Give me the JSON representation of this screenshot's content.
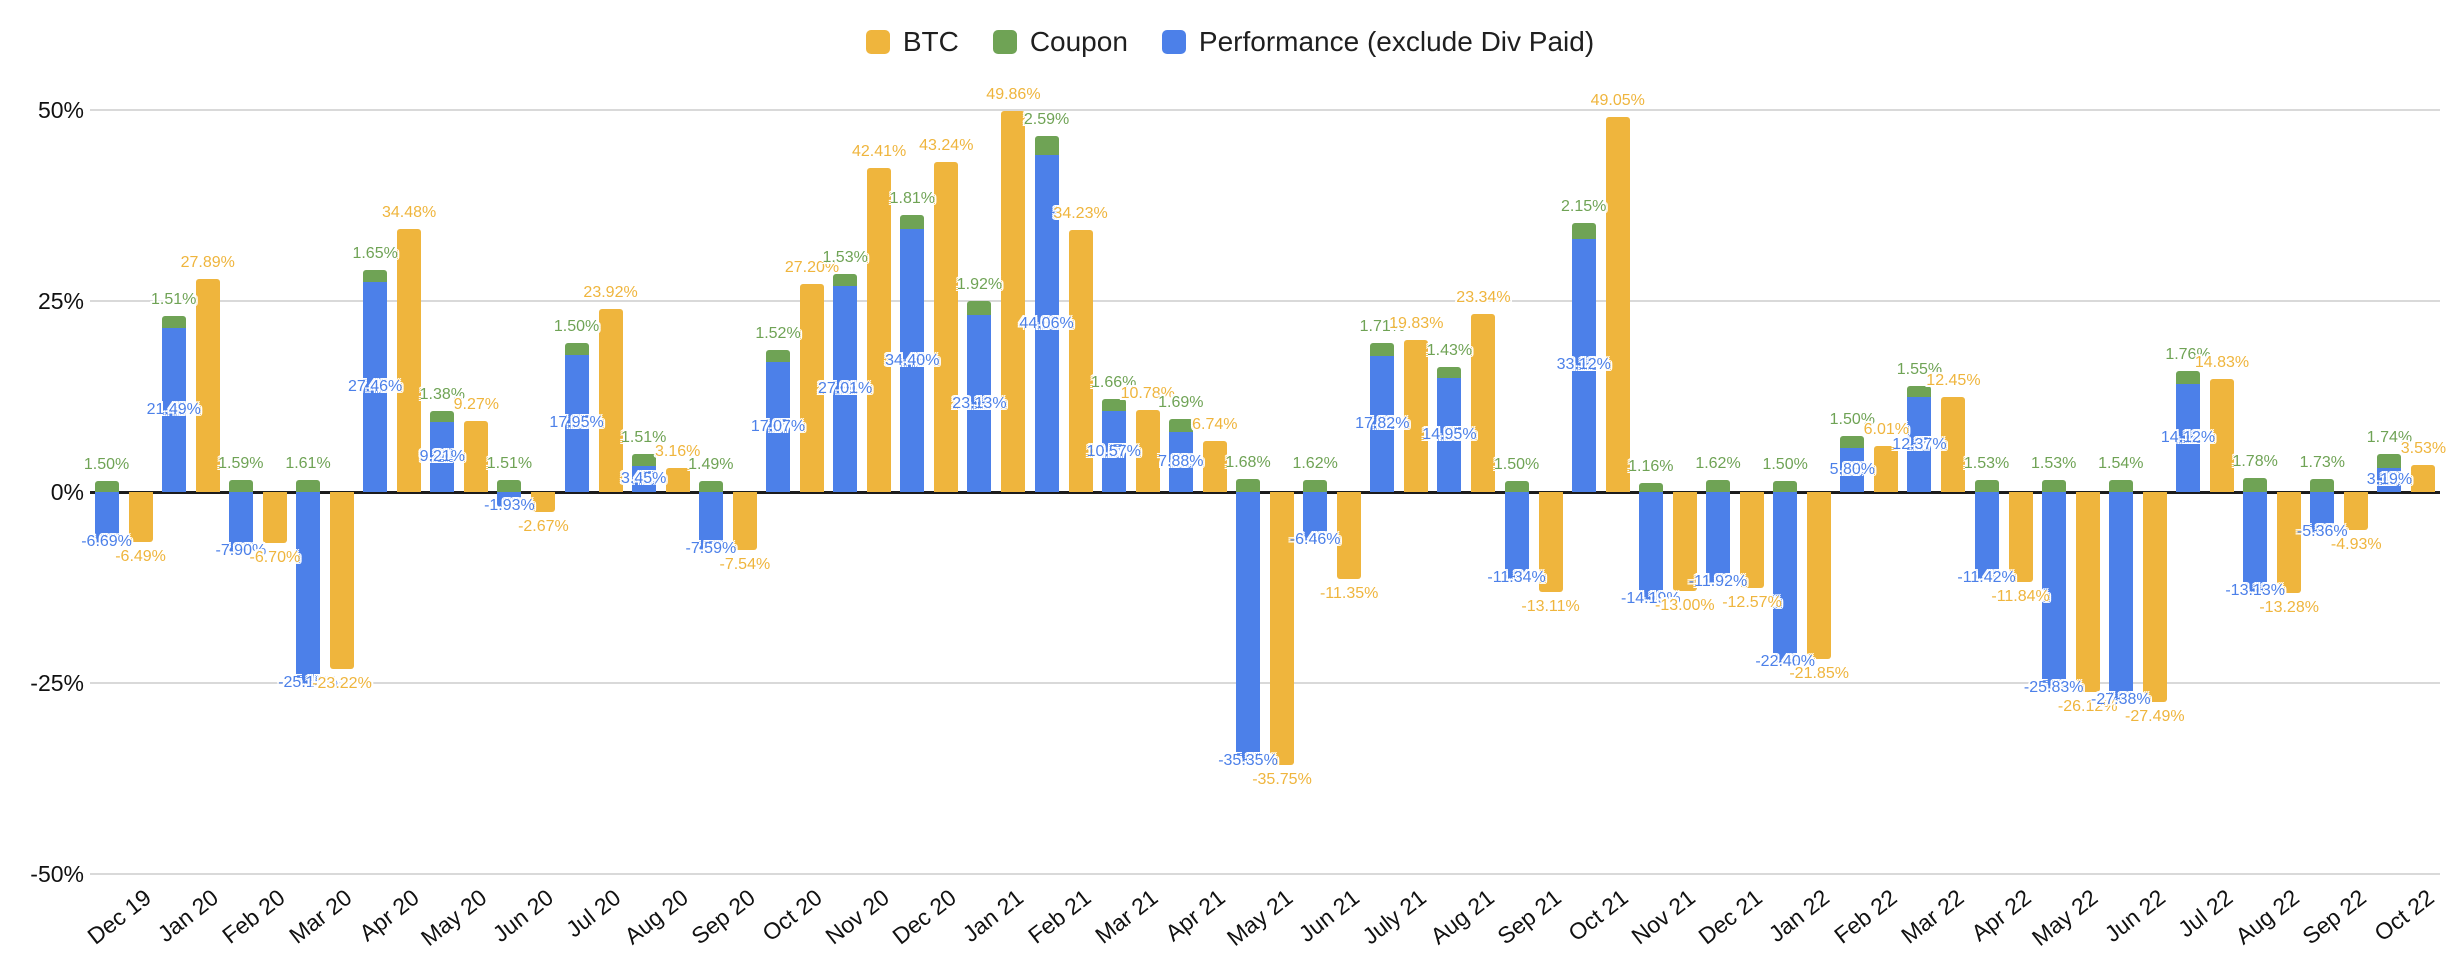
{
  "chart_data": {
    "type": "bar",
    "title": "",
    "legend_position": "top",
    "grid": true,
    "stacking": "Coupon is stacked on top of Performance bar; BTC is a separate bar per month",
    "value_label_format": "0.00%",
    "ylim": [
      -50,
      50
    ],
    "y_ticks": [
      {
        "label": "50%",
        "value": 50
      },
      {
        "label": "25%",
        "value": 25
      },
      {
        "label": "0%",
        "value": 0
      },
      {
        "label": "-25%",
        "value": -25
      },
      {
        "label": "-50%",
        "value": -50
      }
    ],
    "categories": [
      "Dec 19",
      "Jan 20",
      "Feb 20",
      "Mar 20",
      "Apr 20",
      "May 20",
      "Jun 20",
      "Jul 20",
      "Aug 20",
      "Sep 20",
      "Oct 20",
      "Nov 20",
      "Dec 20",
      "Jan 21",
      "Feb 21",
      "Mar 21",
      "Apr 21",
      "May 21",
      "Jun 21",
      "July 21",
      "Aug 21",
      "Sep 21",
      "Oct 21",
      "Nov 21",
      "Dec 21",
      "Jan 22",
      "Feb 22",
      "Mar 22",
      "Apr 22",
      "May 22",
      "Jun 22",
      "Jul 22",
      "Aug 22",
      "Sep 22",
      "Oct 22"
    ],
    "series": [
      {
        "name": "BTC",
        "color": "#EFB53D",
        "values": [
          -6.49,
          27.89,
          -6.7,
          -23.22,
          34.48,
          9.27,
          -2.67,
          23.92,
          3.16,
          -7.54,
          27.2,
          42.41,
          43.24,
          49.86,
          34.23,
          10.78,
          6.74,
          -35.75,
          -11.35,
          19.83,
          23.34,
          -13.11,
          49.05,
          -13.0,
          -12.57,
          -21.85,
          6.01,
          12.45,
          -11.84,
          -26.12,
          -27.49,
          14.83,
          -13.28,
          -4.93,
          3.53
        ]
      },
      {
        "name": "Coupon",
        "color": "#6FA355",
        "values": [
          1.5,
          1.51,
          1.59,
          1.61,
          1.65,
          1.38,
          1.51,
          1.5,
          1.51,
          1.49,
          1.52,
          1.53,
          1.81,
          1.92,
          2.59,
          1.66,
          1.69,
          1.68,
          1.62,
          1.71,
          1.43,
          1.5,
          2.15,
          1.16,
          1.62,
          1.5,
          1.5,
          1.55,
          1.53,
          1.53,
          1.54,
          1.76,
          1.78,
          1.73,
          1.74
        ]
      },
      {
        "name": "Performance (exclude Div Paid)",
        "color": "#4C80E9",
        "values": [
          -6.69,
          21.49,
          -7.9,
          -25.15,
          27.46,
          9.21,
          -1.93,
          17.95,
          3.45,
          -7.59,
          17.07,
          27.01,
          34.4,
          23.13,
          44.06,
          10.57,
          7.88,
          -35.35,
          -6.46,
          17.82,
          14.95,
          -11.34,
          33.12,
          -14.19,
          -11.92,
          -22.4,
          5.8,
          12.37,
          -11.42,
          -25.83,
          -27.38,
          14.12,
          -13.13,
          -5.36,
          3.19
        ]
      }
    ]
  }
}
